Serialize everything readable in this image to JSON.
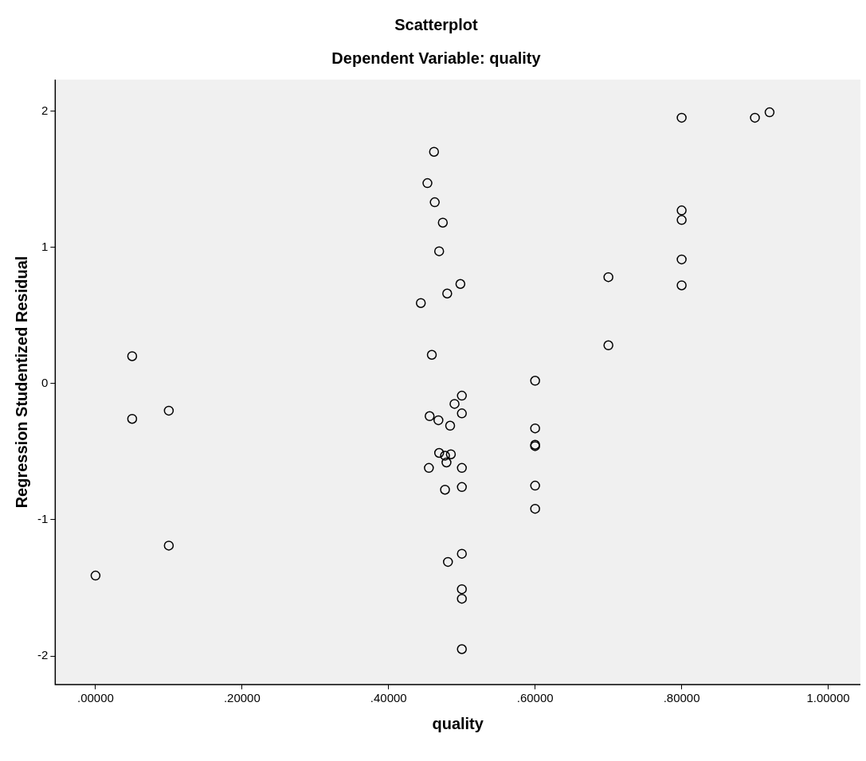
{
  "chart_data": {
    "type": "scatter",
    "title": "Scatterplot",
    "subtitle": "Dependent Variable: quality",
    "xlabel": "quality",
    "ylabel": "Regression Studentized Residual",
    "x": [
      0.0,
      0.05,
      0.05,
      0.1,
      0.1,
      0.462,
      0.453,
      0.463,
      0.474,
      0.469,
      0.444,
      0.48,
      0.498,
      0.459,
      0.5,
      0.49,
      0.456,
      0.468,
      0.5,
      0.484,
      0.469,
      0.477,
      0.485,
      0.479,
      0.5,
      0.455,
      0.477,
      0.5,
      0.5,
      0.481,
      0.5,
      0.5,
      0.5,
      0.6,
      0.6,
      0.6,
      0.6,
      0.6,
      0.6,
      0.7,
      0.7,
      0.8,
      0.8,
      0.8,
      0.8,
      0.8,
      0.9,
      0.92
    ],
    "values": [
      -1.41,
      0.2,
      -0.26,
      -0.2,
      -1.19,
      1.7,
      1.47,
      1.33,
      1.18,
      0.97,
      0.59,
      0.66,
      0.73,
      0.21,
      -0.09,
      -0.15,
      -0.24,
      -0.27,
      -0.22,
      -0.31,
      -0.51,
      -0.53,
      -0.52,
      -0.58,
      -0.62,
      -0.62,
      -0.78,
      -0.76,
      -1.25,
      -1.31,
      -1.51,
      -1.58,
      -1.95,
      0.02,
      -0.33,
      -0.45,
      -0.46,
      -0.75,
      -0.92,
      0.78,
      0.28,
      1.95,
      1.27,
      1.2,
      0.91,
      0.72,
      1.95,
      1.99
    ],
    "color": "#000000",
    "marker": "circle",
    "xlim": [
      -0.055,
      1.044
    ],
    "ylim": [
      -2.21,
      2.23
    ],
    "xticks": [
      {
        "value": 0,
        "label": ".00000"
      },
      {
        "value": 0.2,
        "label": ".20000"
      },
      {
        "value": 0.4,
        "label": ".40000"
      },
      {
        "value": 0.6,
        "label": ".60000"
      },
      {
        "value": 0.8,
        "label": ".80000"
      },
      {
        "value": 1.0,
        "label": "1.00000"
      }
    ],
    "yticks": [
      -2,
      -1,
      0,
      1,
      2
    ]
  }
}
